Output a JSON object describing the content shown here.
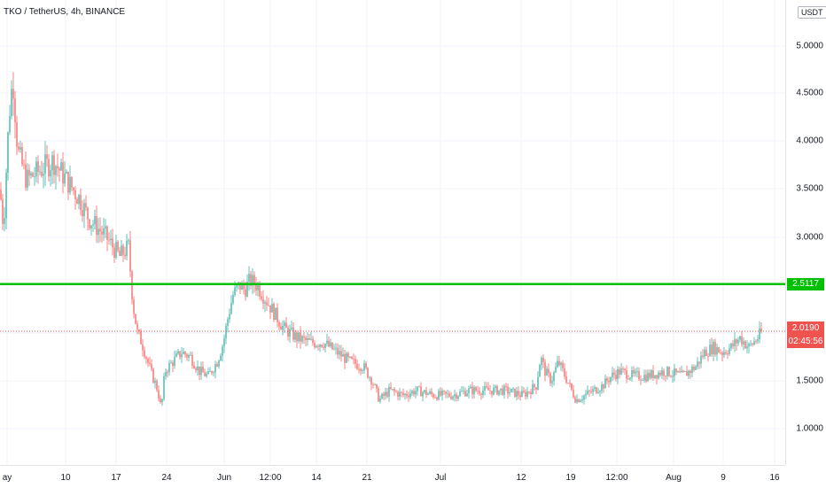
{
  "header": {
    "symbol_title": "TKO / TetherUS, 4h, BINANCE",
    "currency_button": "USDT"
  },
  "price_axis": {
    "labels": [
      "5.0000",
      "4.5000",
      "4.0000",
      "3.5000",
      "3.0000",
      "1.5000",
      "1.0000"
    ]
  },
  "time_axis": {
    "labels": [
      "ay",
      "10",
      "17",
      "24",
      "Jun",
      "12:00",
      "14",
      "21",
      "Jul",
      "12",
      "19",
      "12:00",
      "Aug",
      "9",
      "16"
    ]
  },
  "horizontal_level": {
    "price": "2.5117",
    "color": "#00c000"
  },
  "last_price": {
    "price": "2.0190",
    "countdown": "02:45:56",
    "color": "#ef5350"
  },
  "colors": {
    "up": "#26a69a",
    "down": "#ef5350",
    "grid": "#f0f3fa"
  },
  "chart_data": {
    "type": "candlestick",
    "title": "TKO / TetherUS, 4h, BINANCE",
    "y_unit": "USDT",
    "ylim": [
      0.5,
      5.2
    ],
    "grid": true,
    "x_ticks": [
      "ay",
      "10",
      "17",
      "24",
      "Jun",
      "12:00",
      "14",
      "21",
      "Jul",
      "12",
      "19",
      "12:00",
      "Aug",
      "9",
      "16"
    ],
    "close_path": [
      [
        0,
        3.5
      ],
      [
        4,
        3.1
      ],
      [
        8,
        3.9
      ],
      [
        12,
        4.5
      ],
      [
        15,
        4.6
      ],
      [
        20,
        3.9
      ],
      [
        30,
        3.6
      ],
      [
        45,
        3.7
      ],
      [
        60,
        3.8
      ],
      [
        75,
        3.6
      ],
      [
        90,
        3.4
      ],
      [
        100,
        3.2
      ],
      [
        110,
        3.1
      ],
      [
        120,
        3.0
      ],
      [
        135,
        2.8
      ],
      [
        145,
        2.9
      ],
      [
        150,
        2.3
      ],
      [
        155,
        2.0
      ],
      [
        160,
        1.9
      ],
      [
        170,
        1.6
      ],
      [
        178,
        1.4
      ],
      [
        182,
        1.2
      ],
      [
        186,
        1.6
      ],
      [
        195,
        1.7
      ],
      [
        205,
        1.8
      ],
      [
        215,
        1.75
      ],
      [
        225,
        1.6
      ],
      [
        235,
        1.55
      ],
      [
        245,
        1.7
      ],
      [
        252,
        1.9
      ],
      [
        258,
        2.2
      ],
      [
        263,
        2.4
      ],
      [
        270,
        2.5
      ],
      [
        276,
        2.45
      ],
      [
        282,
        2.55
      ],
      [
        290,
        2.5
      ],
      [
        300,
        2.35
      ],
      [
        310,
        2.2
      ],
      [
        320,
        2.05
      ],
      [
        335,
        1.95
      ],
      [
        350,
        1.9
      ],
      [
        365,
        1.9
      ],
      [
        380,
        1.8
      ],
      [
        395,
        1.7
      ],
      [
        410,
        1.65
      ],
      [
        420,
        1.5
      ],
      [
        428,
        1.3
      ],
      [
        440,
        1.4
      ],
      [
        455,
        1.35
      ],
      [
        470,
        1.4
      ],
      [
        490,
        1.35
      ],
      [
        510,
        1.35
      ],
      [
        530,
        1.4
      ],
      [
        550,
        1.4
      ],
      [
        570,
        1.4
      ],
      [
        590,
        1.35
      ],
      [
        605,
        1.45
      ],
      [
        610,
        1.75
      ],
      [
        615,
        1.6
      ],
      [
        622,
        1.5
      ],
      [
        630,
        1.7
      ],
      [
        640,
        1.5
      ],
      [
        650,
        1.3
      ],
      [
        660,
        1.35
      ],
      [
        670,
        1.4
      ],
      [
        680,
        1.45
      ],
      [
        690,
        1.55
      ],
      [
        700,
        1.6
      ],
      [
        715,
        1.55
      ],
      [
        730,
        1.55
      ],
      [
        750,
        1.6
      ],
      [
        770,
        1.55
      ],
      [
        785,
        1.65
      ],
      [
        795,
        1.8
      ],
      [
        805,
        1.85
      ],
      [
        815,
        1.8
      ],
      [
        825,
        1.85
      ],
      [
        835,
        1.95
      ],
      [
        845,
        1.85
      ],
      [
        855,
        1.95
      ],
      [
        860,
        2.02
      ]
    ]
  }
}
